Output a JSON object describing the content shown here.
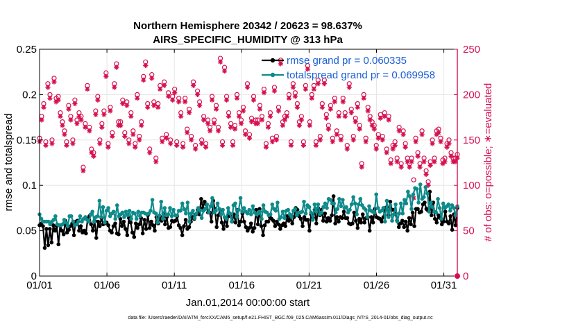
{
  "colors": {
    "rmse": "#000000",
    "spread": "#0e8a8a",
    "obs": "#d6104f",
    "legend_text": "#1a5fd6",
    "grid": "#e6e6e6"
  },
  "chart_data": {
    "type": "line",
    "title_line1": "Northern Hemisphere 20342 / 20623 = 98.637%",
    "title_line2": "AIRS_SPECIFIC_HUMIDITY @ 313 hPa",
    "xlabel": "Jan.01,2014 00:00:00 start",
    "ylabel_left": "rmse and totalspread",
    "ylabel_right": "# of obs: o=possible; ∗=evaluated",
    "footer": "data file: /Users/raeder/DAI/ATM_forcXX/CAM6_setup/f.e21.FHIST_BGC.f09_025.CAM6assim.011/Diags_NTrS_2014-01/obs_diag_output.nc",
    "x_range": [
      0,
      31
    ],
    "ylim_left": [
      0,
      0.25
    ],
    "ylim_right": [
      0,
      250
    ],
    "x_ticks": [
      {
        "value": 0,
        "label": "01/01"
      },
      {
        "value": 5,
        "label": "01/06"
      },
      {
        "value": 10,
        "label": "01/11"
      },
      {
        "value": 15,
        "label": "01/16"
      },
      {
        "value": 20,
        "label": "01/21"
      },
      {
        "value": 25,
        "label": "01/26"
      },
      {
        "value": 30,
        "label": "01/31"
      }
    ],
    "y_ticks_left": [
      {
        "value": 0,
        "label": "0"
      },
      {
        "value": 0.05,
        "label": "0.05"
      },
      {
        "value": 0.1,
        "label": "0.1"
      },
      {
        "value": 0.15,
        "label": "0.15"
      },
      {
        "value": 0.2,
        "label": "0.2"
      },
      {
        "value": 0.25,
        "label": "0.25"
      }
    ],
    "y_ticks_right": [
      {
        "value": 0,
        "label": "0"
      },
      {
        "value": 50,
        "label": "50"
      },
      {
        "value": 100,
        "label": "100"
      },
      {
        "value": 150,
        "label": "150"
      },
      {
        "value": 200,
        "label": "200"
      },
      {
        "value": 250,
        "label": "250"
      }
    ],
    "legend": [
      {
        "name": "rmse grand pr = 0.060335",
        "series": "rmse"
      },
      {
        "name": "totalspread grand pr = 0.069958",
        "series": "spread"
      }
    ],
    "series": [
      {
        "name": "rmse",
        "axis": "left",
        "values": [
          0.056,
          0.058,
          0.055,
          0.031,
          0.052,
          0.034,
          0.052,
          0.037,
          0.056,
          0.05,
          0.055,
          0.035,
          0.056,
          0.05,
          0.046,
          0.061,
          0.048,
          0.051,
          0.055,
          0.058,
          0.045,
          0.06,
          0.061,
          0.05,
          0.055,
          0.048,
          0.05,
          0.047,
          0.063,
          0.066,
          0.057,
          0.05,
          0.061,
          0.042,
          0.06,
          0.055,
          0.064,
          0.057,
          0.058,
          0.059,
          0.056,
          0.05,
          0.048,
          0.055,
          0.058,
          0.047,
          0.046,
          0.063,
          0.055,
          0.06,
          0.052,
          0.045,
          0.064,
          0.059,
          0.048,
          0.043,
          0.058,
          0.053,
          0.057,
          0.064,
          0.047,
          0.062,
          0.052,
          0.067,
          0.053,
          0.06,
          0.056,
          0.05,
          0.065,
          0.058,
          0.066,
          0.061,
          0.069,
          0.057,
          0.065,
          0.053,
          0.054,
          0.061,
          0.06,
          0.061,
          0.066,
          0.056,
          0.053,
          0.045,
          0.055,
          0.062,
          0.052,
          0.054,
          0.06,
          0.065,
          0.063,
          0.068,
          0.073,
          0.068,
          0.085,
          0.075,
          0.082,
          0.079,
          0.07,
          0.07,
          0.06,
          0.083,
          0.074,
          0.054,
          0.067,
          0.073,
          0.059,
          0.052,
          0.064,
          0.055,
          0.069,
          0.066,
          0.06,
          0.068,
          0.059,
          0.073,
          0.056,
          0.06,
          0.069,
          0.06,
          0.054,
          0.05,
          0.053,
          0.058,
          0.049,
          0.053,
          0.073,
          0.057,
          0.074,
          0.055,
          0.045,
          0.056,
          0.06,
          0.06,
          0.065,
          0.063,
          0.061,
          0.055,
          0.06,
          0.057,
          0.052,
          0.056,
          0.058,
          0.055,
          0.066,
          0.061,
          0.064,
          0.058,
          0.065,
          0.075,
          0.073,
          0.066,
          0.063,
          0.055,
          0.065,
          0.062,
          0.062,
          0.05,
          0.068,
          0.064,
          0.073,
          0.058,
          0.075,
          0.067,
          0.073,
          0.061,
          0.069,
          0.06,
          0.064,
          0.061,
          0.067,
          0.088,
          0.058,
          0.065,
          0.06,
          0.065,
          0.064,
          0.071,
          0.064,
          0.064,
          0.058,
          0.057,
          0.058,
          0.07,
          0.061,
          0.053,
          0.063,
          0.059,
          0.068,
          0.059,
          0.064,
          0.065,
          0.05,
          0.065,
          0.059,
          0.074,
          0.065,
          0.064,
          0.063,
          0.06,
          0.065,
          0.075,
          0.076,
          0.067,
          0.082,
          0.073,
          0.073,
          0.069,
          0.061,
          0.054,
          0.058,
          0.061,
          0.054,
          0.06,
          0.05,
          0.064,
          0.057,
          0.07,
          0.055,
          0.074,
          0.074,
          0.07,
          0.071,
          0.079,
          0.081,
          0.074,
          0.072,
          0.093,
          0.067,
          0.081,
          0.063,
          0.059,
          0.067,
          0.064,
          0.057,
          0.06,
          0.071,
          0.06,
          0.058,
          0.066,
          0.051,
          0.068,
          0.056,
          0.075
        ]
      },
      {
        "name": "totalspread",
        "axis": "left",
        "values": [
          0.068,
          0.063,
          0.06,
          0.06,
          0.06,
          0.06,
          0.057,
          0.06,
          0.062,
          0.066,
          0.057,
          0.056,
          0.056,
          0.057,
          0.062,
          0.059,
          0.055,
          0.066,
          0.066,
          0.06,
          0.056,
          0.057,
          0.06,
          0.066,
          0.06,
          0.063,
          0.065,
          0.062,
          0.06,
          0.068,
          0.071,
          0.06,
          0.065,
          0.066,
          0.083,
          0.065,
          0.076,
          0.059,
          0.072,
          0.075,
          0.066,
          0.069,
          0.071,
          0.063,
          0.078,
          0.066,
          0.068,
          0.07,
          0.065,
          0.071,
          0.067,
          0.072,
          0.063,
          0.07,
          0.069,
          0.063,
          0.071,
          0.066,
          0.07,
          0.07,
          0.069,
          0.068,
          0.069,
          0.072,
          0.084,
          0.07,
          0.069,
          0.059,
          0.067,
          0.082,
          0.063,
          0.075,
          0.067,
          0.068,
          0.075,
          0.066,
          0.073,
          0.067,
          0.067,
          0.072,
          0.072,
          0.08,
          0.074,
          0.069,
          0.081,
          0.06,
          0.069,
          0.072,
          0.064,
          0.069,
          0.075,
          0.072,
          0.064,
          0.072,
          0.074,
          0.079,
          0.07,
          0.077,
          0.086,
          0.07,
          0.072,
          0.08,
          0.074,
          0.068,
          0.073,
          0.065,
          0.063,
          0.075,
          0.069,
          0.06,
          0.078,
          0.08,
          0.065,
          0.073,
          0.086,
          0.071,
          0.075,
          0.071,
          0.069,
          0.073,
          0.068,
          0.077,
          0.07,
          0.068,
          0.069,
          0.071,
          0.063,
          0.078,
          0.071,
          0.07,
          0.067,
          0.068,
          0.079,
          0.074,
          0.072,
          0.081,
          0.063,
          0.065,
          0.071,
          0.064,
          0.072,
          0.073,
          0.068,
          0.065,
          0.072,
          0.074,
          0.067,
          0.07,
          0.07,
          0.071,
          0.082,
          0.069,
          0.078,
          0.076,
          0.07,
          0.062,
          0.079,
          0.071,
          0.079,
          0.068,
          0.07,
          0.076,
          0.08,
          0.075,
          0.085,
          0.084,
          0.08,
          0.08,
          0.07,
          0.074,
          0.085,
          0.077,
          0.084,
          0.075,
          0.076,
          0.07,
          0.073,
          0.079,
          0.087,
          0.08,
          0.068,
          0.079,
          0.085,
          0.078,
          0.075,
          0.073,
          0.065,
          0.077,
          0.072,
          0.071,
          0.07,
          0.09,
          0.075,
          0.071,
          0.072,
          0.075,
          0.06,
          0.083,
          0.065,
          0.078,
          0.061,
          0.068,
          0.079,
          0.06,
          0.069,
          0.08,
          0.069,
          0.084,
          0.08,
          0.093,
          0.088,
          0.074,
          0.09,
          0.097,
          0.096,
          0.081,
          0.101,
          0.085,
          0.087,
          0.098,
          0.091,
          0.071,
          0.081,
          0.076,
          0.071,
          0.07,
          0.085,
          0.075,
          0.063,
          0.08,
          0.075,
          0.077,
          0.079,
          0.072,
          0.078,
          0.075,
          0.067,
          0.077
        ]
      },
      {
        "name": "obs_possible",
        "axis": "right",
        "values": [
          152,
          176,
          190,
          148,
          212,
          200,
          150,
          218,
          196,
          198,
          180,
          170,
          160,
          148,
          188,
          176,
          150,
          194,
          172,
          180,
          176,
          120,
          168,
          210,
          164,
          140,
          136,
          182,
          198,
          150,
          168,
          182,
          224,
          146,
          186,
          158,
          212,
          234,
          170,
          170,
          194,
          158,
          192,
          150,
          180,
          160,
          146,
          200,
          154,
          170,
          220,
          236,
          190,
          140,
          222,
          192,
          130,
          190,
          210,
          152,
          214,
          156,
          202,
          150,
          198,
          206,
          148,
          196,
          180,
          146,
          196,
          162,
          184,
          154,
          214,
          144,
          204,
          192,
          150,
          176,
          146,
          172,
          164,
          198,
          172,
          188,
          164,
          240,
          148,
          230,
          198,
          180,
          168,
          148,
          166,
          200,
          180,
          172,
          186,
          160,
          212,
          156,
          174,
          198,
          172,
          172,
          188,
          176,
          206,
          146,
          168,
          180,
          152,
          208,
          154,
          186,
          238,
          170,
          176,
          180,
          200,
          148,
          212,
          202,
          190,
          170,
          176,
          148,
          210,
          232,
          170,
          200,
          210,
          148,
          216,
          154,
          190,
          216,
          178,
          166,
          188,
          152,
          196,
          160,
          180,
          154,
          196,
          180,
          144,
          212,
          184,
          154,
          174,
          190,
          166,
          124,
          200,
          152,
          186,
          176,
          170,
          166,
          144,
          156,
          178,
          154,
          180,
          140,
          176,
          128,
          144,
          148,
          130,
          164,
          124,
          160,
          146,
          130,
          124,
          130,
          106,
          152,
          136,
          124,
          160,
          130,
          116,
          104,
          126,
          150,
          130,
          160,
          162,
          152,
          128,
          130,
          146,
          150,
          136,
          130,
          130,
          134
        ]
      },
      {
        "name": "obs_evaluated",
        "axis": "right",
        "values": [
          148,
          172,
          186,
          144,
          208,
          196,
          146,
          214,
          192,
          194,
          176,
          166,
          156,
          144,
          184,
          172,
          146,
          190,
          168,
          176,
          172,
          116,
          164,
          206,
          160,
          136,
          132,
          178,
          194,
          146,
          164,
          178,
          220,
          142,
          182,
          154,
          208,
          230,
          166,
          166,
          190,
          154,
          188,
          146,
          176,
          156,
          142,
          196,
          150,
          166,
          216,
          232,
          186,
          136,
          218,
          188,
          126,
          186,
          206,
          148,
          210,
          152,
          198,
          146,
          194,
          202,
          144,
          192,
          176,
          142,
          192,
          158,
          180,
          150,
          210,
          140,
          200,
          188,
          146,
          172,
          142,
          168,
          160,
          194,
          168,
          184,
          160,
          236,
          144,
          226,
          194,
          176,
          164,
          144,
          162,
          196,
          176,
          168,
          182,
          156,
          208,
          152,
          170,
          194,
          168,
          168,
          184,
          172,
          202,
          142,
          164,
          176,
          148,
          204,
          150,
          182,
          234,
          166,
          172,
          176,
          196,
          144,
          208,
          198,
          186,
          166,
          172,
          144,
          206,
          228,
          166,
          196,
          206,
          144,
          212,
          150,
          186,
          212,
          174,
          162,
          184,
          148,
          192,
          156,
          176,
          150,
          192,
          176,
          140,
          208,
          180,
          150,
          170,
          186,
          162,
          120,
          196,
          148,
          182,
          172,
          166,
          162,
          140,
          152,
          174,
          150,
          176,
          136,
          172,
          124,
          140,
          144,
          126,
          160,
          120,
          156,
          142,
          126,
          120,
          126,
          86,
          148,
          132,
          120,
          156,
          126,
          112,
          100,
          122,
          146,
          126,
          156,
          158,
          148,
          124,
          126,
          142,
          146,
          132,
          126,
          126,
          130
        ]
      }
    ]
  }
}
